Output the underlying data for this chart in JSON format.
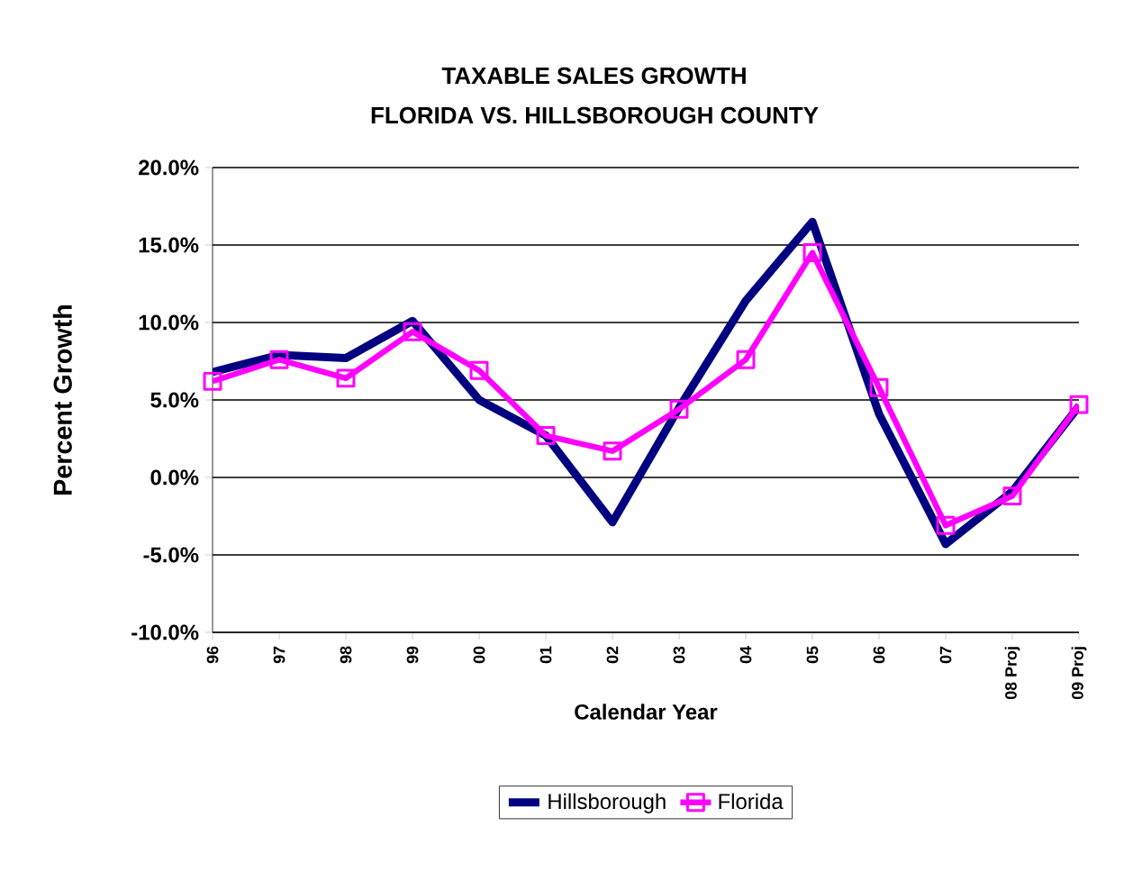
{
  "chart_data": {
    "type": "line",
    "title": "TAXABLE SALES GROWTH",
    "subtitle": "FLORIDA VS. HILLSBOROUGH COUNTY",
    "xlabel": "Calendar Year",
    "ylabel": "Percent Growth",
    "categories": [
      "96",
      "97",
      "98",
      "99",
      "00",
      "01",
      "02",
      "03",
      "04",
      "05",
      "06",
      "07",
      "08 Proj",
      "09 Proj"
    ],
    "series": [
      {
        "name": "Hillsborough",
        "color": "#000080",
        "marker": "none",
        "values": [
          6.8,
          7.9,
          7.7,
          10.1,
          5.0,
          2.7,
          -2.9,
          4.5,
          11.4,
          16.5,
          4.1,
          -4.3,
          -0.9,
          4.6
        ]
      },
      {
        "name": "Florida",
        "color": "#ff00ff",
        "marker": "square",
        "values": [
          6.2,
          7.6,
          6.4,
          9.4,
          6.9,
          2.7,
          1.7,
          4.4,
          7.6,
          14.5,
          5.8,
          -3.1,
          -1.2,
          4.7
        ]
      }
    ],
    "ylim": [
      -10,
      20
    ],
    "yticks": [
      {
        "value": -10,
        "label": "-10.0%"
      },
      {
        "value": -5,
        "label": "-5.0%"
      },
      {
        "value": 0,
        "label": "0.0%"
      },
      {
        "value": 5,
        "label": "5.0%"
      },
      {
        "value": 10,
        "label": "10.0%"
      },
      {
        "value": 15,
        "label": "15.0%"
      },
      {
        "value": 20,
        "label": "20.0%"
      }
    ],
    "grid": "y",
    "legend": "bottom",
    "line_style": "solid"
  }
}
